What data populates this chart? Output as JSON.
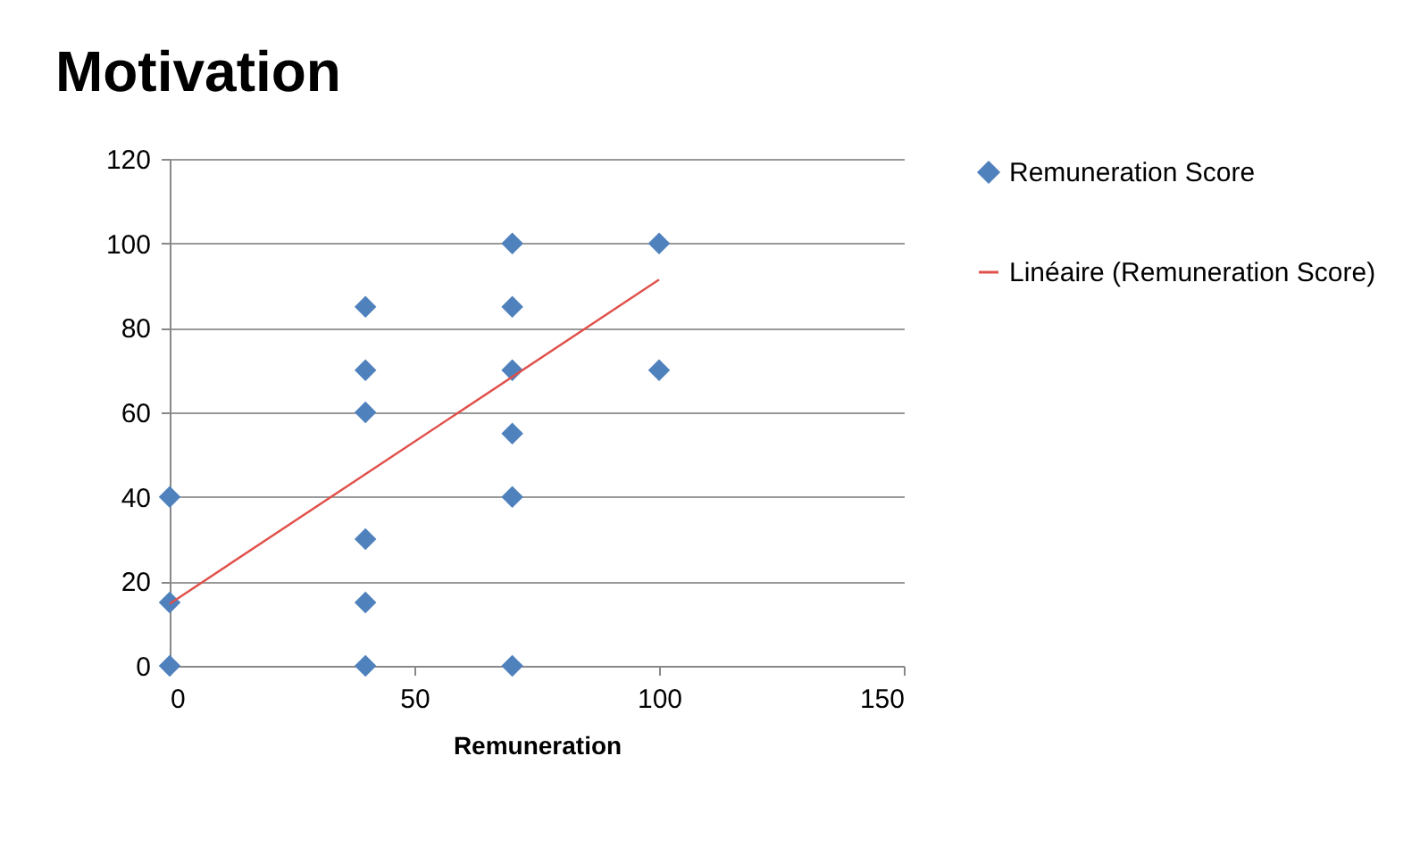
{
  "chart_data": {
    "type": "scatter",
    "title": "Motivation",
    "xlabel": "Remuneration",
    "xlim": [
      0,
      150
    ],
    "xticks": [
      0,
      50,
      100,
      150
    ],
    "ylim": [
      0,
      120
    ],
    "yticks": [
      0,
      20,
      40,
      60,
      80,
      100,
      120
    ],
    "grid": "y",
    "legend": "right",
    "marker": "diamond",
    "series": [
      {
        "name": "Remuneration Score",
        "color": "#4f81bd",
        "x": [
          0,
          0,
          0,
          40,
          40,
          40,
          40,
          40,
          40,
          70,
          70,
          70,
          70,
          70,
          70,
          100,
          100
        ],
        "values": [
          0,
          15,
          40,
          0,
          15,
          30,
          60,
          70,
          85,
          0,
          40,
          55,
          70,
          85,
          100,
          70,
          100
        ]
      },
      {
        "name": "Linéaire (Remuneration Score)",
        "type": "line",
        "color": "#e0504a",
        "marker": "none",
        "x": [
          0,
          100
        ],
        "values": [
          14.7,
          91.4
        ]
      }
    ]
  }
}
